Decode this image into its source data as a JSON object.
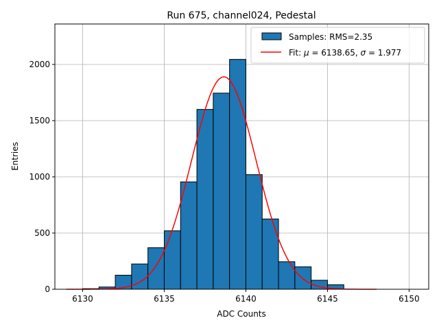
{
  "chart_data": {
    "type": "bar",
    "title": "Run 675, channel024, Pedestal",
    "xlabel": "ADC Counts",
    "ylabel": "Entries",
    "xlim": [
      6128.3,
      6151.2
    ],
    "ylim": [
      0,
      2360
    ],
    "x_ticks": [
      6130,
      6135,
      6140,
      6145,
      6150
    ],
    "y_ticks": [
      0,
      500,
      1000,
      1500,
      2000
    ],
    "grid": true,
    "legend_position": "top-right",
    "bin_width": 1,
    "bins": [
      {
        "x0": 6130,
        "x1": 6131,
        "value": 5
      },
      {
        "x0": 6131,
        "x1": 6132,
        "value": 20
      },
      {
        "x0": 6132,
        "x1": 6133,
        "value": 125
      },
      {
        "x0": 6133,
        "x1": 6134,
        "value": 225
      },
      {
        "x0": 6134,
        "x1": 6135,
        "value": 370
      },
      {
        "x0": 6135,
        "x1": 6136,
        "value": 520
      },
      {
        "x0": 6136,
        "x1": 6137,
        "value": 955
      },
      {
        "x0": 6137,
        "x1": 6138,
        "value": 1600
      },
      {
        "x0": 6138,
        "x1": 6139,
        "value": 1745
      },
      {
        "x0": 6139,
        "x1": 6140,
        "value": 2045
      },
      {
        "x0": 6140,
        "x1": 6141,
        "value": 1020
      },
      {
        "x0": 6141,
        "x1": 6142,
        "value": 625
      },
      {
        "x0": 6142,
        "x1": 6143,
        "value": 245
      },
      {
        "x0": 6143,
        "x1": 6144,
        "value": 200
      },
      {
        "x0": 6144,
        "x1": 6145,
        "value": 80
      },
      {
        "x0": 6145,
        "x1": 6146,
        "value": 40
      }
    ],
    "fit": {
      "mu": 6138.65,
      "sigma": 1.977,
      "amplitude": 1890,
      "x_range": [
        6129,
        6148
      ]
    },
    "legend": [
      {
        "label": "Samples: RMS=2.35",
        "kind": "patch"
      },
      {
        "label_prefix": "Fit: ",
        "mu_label": "μ",
        "mu_text": " = 6138.65, ",
        "sigma_label": "σ",
        "sigma_text": " = 1.977",
        "kind": "line"
      }
    ],
    "colors": {
      "bar_fill": "#1f77b4",
      "bar_edge": "#000000",
      "fit_line": "#ff0000",
      "grid": "#b0b0b0"
    }
  }
}
